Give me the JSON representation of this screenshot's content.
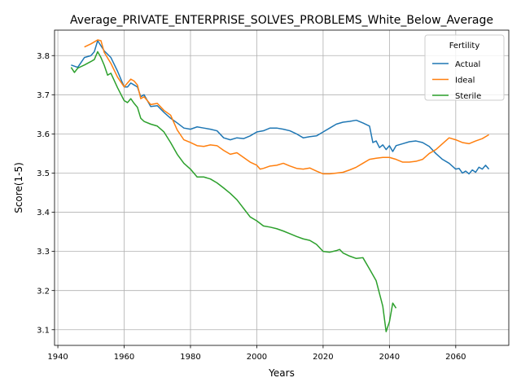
{
  "chart_data": {
    "type": "line",
    "title": "Average_PRIVATE_ENTERPRISE_SOLVES_PROBLEMS_White_Below_Average",
    "xlabel": "Years",
    "ylabel": "Score(1-5)",
    "xlim": [
      1939,
      2076
    ],
    "ylim": [
      3.06,
      3.865
    ],
    "xticks": [
      1940,
      1960,
      1980,
      2000,
      2020,
      2040,
      2060
    ],
    "yticks": [
      3.1,
      3.2,
      3.3,
      3.4,
      3.5,
      3.6,
      3.7,
      3.8
    ],
    "grid": true,
    "legend": {
      "title": "Fertility",
      "position": "top-right"
    },
    "series": [
      {
        "name": "Actual",
        "color": "#1f77b4",
        "x": [
          1944,
          1946,
          1948,
          1950,
          1951,
          1952,
          1954,
          1956,
          1958,
          1960,
          1961,
          1962,
          1963,
          1964,
          1965,
          1966,
          1968,
          1970,
          1972,
          1974,
          1976,
          1978,
          1980,
          1982,
          1984,
          1986,
          1988,
          1990,
          1992,
          1994,
          1996,
          1998,
          2000,
          2002,
          2004,
          2006,
          2008,
          2010,
          2012,
          2014,
          2016,
          2018,
          2020,
          2022,
          2024,
          2026,
          2028,
          2030,
          2032,
          2034,
          2035,
          2036,
          2037,
          2038,
          2039,
          2040,
          2041,
          2042,
          2044,
          2046,
          2048,
          2050,
          2052,
          2054,
          2056,
          2058,
          2060,
          2061,
          2062,
          2063,
          2064,
          2065,
          2066,
          2067,
          2068,
          2069,
          2070
        ],
        "y": [
          3.776,
          3.77,
          3.795,
          3.8,
          3.81,
          3.838,
          3.812,
          3.795,
          3.76,
          3.72,
          3.72,
          3.73,
          3.725,
          3.72,
          3.695,
          3.7,
          3.67,
          3.672,
          3.655,
          3.64,
          3.628,
          3.615,
          3.612,
          3.618,
          3.615,
          3.612,
          3.608,
          3.59,
          3.585,
          3.59,
          3.588,
          3.595,
          3.605,
          3.608,
          3.615,
          3.615,
          3.612,
          3.608,
          3.6,
          3.59,
          3.593,
          3.595,
          3.605,
          3.615,
          3.625,
          3.63,
          3.632,
          3.635,
          3.628,
          3.62,
          3.578,
          3.582,
          3.565,
          3.572,
          3.56,
          3.57,
          3.555,
          3.57,
          3.575,
          3.58,
          3.582,
          3.578,
          3.568,
          3.55,
          3.535,
          3.525,
          3.51,
          3.512,
          3.5,
          3.505,
          3.498,
          3.508,
          3.502,
          3.515,
          3.51,
          3.52,
          3.51
        ]
      },
      {
        "name": "Ideal",
        "color": "#ff7f0e",
        "x": [
          1948,
          1950,
          1951,
          1952,
          1953,
          1954,
          1956,
          1958,
          1960,
          1961,
          1962,
          1963,
          1964,
          1965,
          1966,
          1968,
          1970,
          1972,
          1974,
          1976,
          1978,
          1980,
          1982,
          1984,
          1986,
          1988,
          1990,
          1992,
          1994,
          1996,
          1998,
          2000,
          2001,
          2002,
          2004,
          2006,
          2008,
          2010,
          2012,
          2014,
          2016,
          2018,
          2020,
          2022,
          2024,
          2026,
          2028,
          2030,
          2032,
          2034,
          2036,
          2038,
          2040,
          2042,
          2044,
          2046,
          2048,
          2050,
          2052,
          2054,
          2056,
          2058,
          2060,
          2062,
          2064,
          2066,
          2068,
          2070
        ],
        "y": [
          3.822,
          3.83,
          3.835,
          3.84,
          3.838,
          3.808,
          3.78,
          3.745,
          3.72,
          3.73,
          3.74,
          3.735,
          3.725,
          3.69,
          3.695,
          3.675,
          3.678,
          3.66,
          3.648,
          3.61,
          3.585,
          3.578,
          3.57,
          3.568,
          3.572,
          3.57,
          3.558,
          3.548,
          3.552,
          3.54,
          3.528,
          3.52,
          3.51,
          3.512,
          3.518,
          3.52,
          3.525,
          3.518,
          3.512,
          3.51,
          3.513,
          3.505,
          3.498,
          3.498,
          3.5,
          3.502,
          3.508,
          3.515,
          3.525,
          3.535,
          3.538,
          3.54,
          3.54,
          3.535,
          3.528,
          3.528,
          3.53,
          3.535,
          3.55,
          3.56,
          3.575,
          3.59,
          3.585,
          3.578,
          3.575,
          3.582,
          3.588,
          3.598
        ]
      },
      {
        "name": "Sterile",
        "color": "#2ca02c",
        "x": [
          1944,
          1945,
          1946,
          1948,
          1950,
          1951,
          1952,
          1953,
          1954,
          1955,
          1956,
          1958,
          1960,
          1961,
          1962,
          1963,
          1964,
          1965,
          1966,
          1968,
          1970,
          1972,
          1974,
          1976,
          1978,
          1980,
          1982,
          1984,
          1986,
          1988,
          1990,
          1992,
          1994,
          1996,
          1998,
          2000,
          2002,
          2004,
          2006,
          2008,
          2010,
          2012,
          2014,
          2016,
          2018,
          2020,
          2022,
          2024,
          2025,
          2026,
          2028,
          2030,
          2032,
          2034,
          2036,
          2038,
          2039,
          2040,
          2041,
          2042
        ],
        "y": [
          3.77,
          3.757,
          3.768,
          3.776,
          3.785,
          3.79,
          3.81,
          3.795,
          3.775,
          3.75,
          3.755,
          3.718,
          3.685,
          3.68,
          3.69,
          3.678,
          3.668,
          3.64,
          3.632,
          3.625,
          3.62,
          3.605,
          3.578,
          3.548,
          3.525,
          3.51,
          3.49,
          3.49,
          3.485,
          3.475,
          3.462,
          3.448,
          3.432,
          3.41,
          3.388,
          3.378,
          3.365,
          3.362,
          3.358,
          3.352,
          3.345,
          3.338,
          3.332,
          3.328,
          3.318,
          3.3,
          3.298,
          3.302,
          3.305,
          3.296,
          3.288,
          3.282,
          3.284,
          3.255,
          3.225,
          3.16,
          3.095,
          3.12,
          3.168,
          3.155
        ]
      }
    ]
  }
}
